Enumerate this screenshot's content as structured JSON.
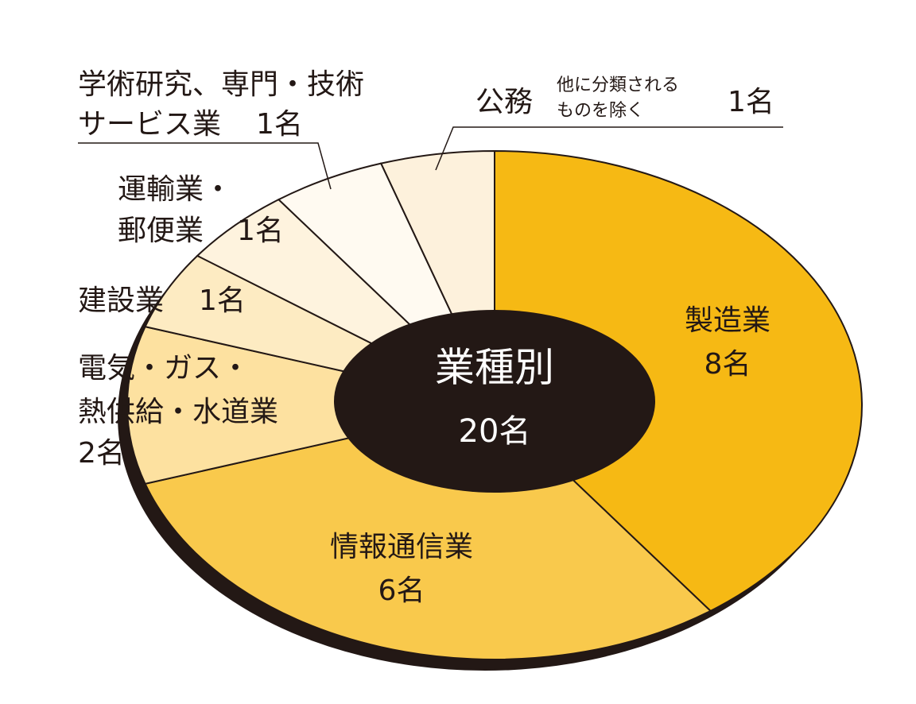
{
  "chart_data": {
    "type": "pie",
    "center_title": "業種別",
    "total": 20,
    "total_label": "20名",
    "categories": [
      [
        "製造業"
      ],
      [
        "情報通信業"
      ],
      [
        "電気・ガス・",
        "熱供給・水道業"
      ],
      [
        "建設業"
      ],
      [
        "運輸業・",
        "郵便業"
      ],
      [
        "学術研究、専門・技術",
        "サービス業"
      ],
      [
        "公務"
      ]
    ],
    "category_notes": [
      null,
      null,
      null,
      null,
      null,
      null,
      [
        "他に分類される",
        "ものを除く"
      ]
    ],
    "values": [
      8,
      6,
      2,
      1,
      1,
      1,
      1
    ],
    "value_labels": [
      "8名",
      "6名",
      "2名",
      "1名",
      "1名",
      "1名",
      "1名"
    ],
    "colors": [
      "#f6b914",
      "#f9c94c",
      "#fde1a0",
      "#fdebc2",
      "#fef3de",
      "#fffaf1",
      "#fdf1dc"
    ]
  }
}
